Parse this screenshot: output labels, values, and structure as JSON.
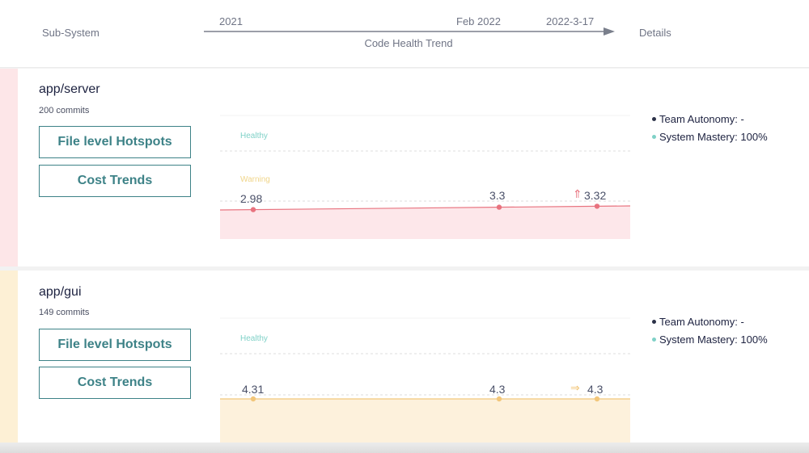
{
  "header": {
    "subsystem_label": "Sub-System",
    "details_label": "Details",
    "trend_label": "Code Health Trend",
    "timeline": [
      "2021",
      "Feb 2022",
      "2022-3-17"
    ]
  },
  "rows": [
    {
      "name": "app/server",
      "commits": "200 commits",
      "hotspots_label": "File level Hotspots",
      "cost_label": "Cost Trends",
      "zone_healthy": "Healthy",
      "zone_warning": "Warning",
      "values": [
        "2.98",
        "3.3",
        "3.32"
      ],
      "trend_icon": "arrow-up-icon",
      "trend_glyph": "⇑",
      "team_autonomy": "Team Autonomy: -",
      "system_mastery": "System Mastery: 100%",
      "stripe_color": "#fde6e8",
      "line_color": "#e8737f",
      "fill_color": "#fde7ea"
    },
    {
      "name": "app/gui",
      "commits": "149 commits",
      "hotspots_label": "File level Hotspots",
      "cost_label": "Cost Trends",
      "zone_healthy": "Healthy",
      "values": [
        "4.31",
        "4.3",
        "4.3"
      ],
      "trend_icon": "arrow-right-icon",
      "trend_glyph": "⇒",
      "team_autonomy": "Team Autonomy: -",
      "system_mastery": "System Mastery: 100%",
      "stripe_color": "#fdf0d5",
      "line_color": "#f2c67a",
      "fill_color": "#fdf1dc"
    }
  ],
  "colors": {
    "accent": "#3d8287",
    "healthy": "#7fd1c7",
    "warning": "#f0d58a",
    "team_dot": "#2b3148",
    "mastery_dot": "#7fd1c7"
  }
}
